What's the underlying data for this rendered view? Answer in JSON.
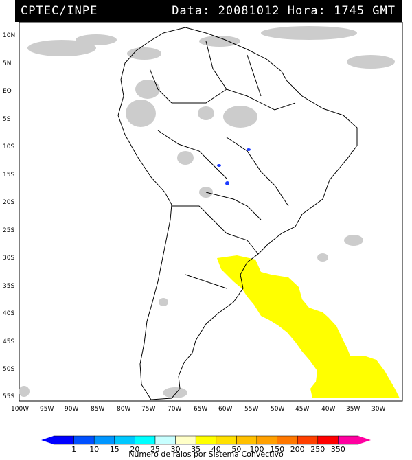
{
  "header": {
    "source": "CPTEC/INPE",
    "datetime": "Data: 20081012 Hora: 1745 GMT"
  },
  "map": {
    "lat_labels": [
      "10N",
      "5N",
      "EQ",
      "5S",
      "10S",
      "15S",
      "20S",
      "25S",
      "30S",
      "35S",
      "40S",
      "45S",
      "50S",
      "55S"
    ],
    "lon_labels": [
      "100W",
      "95W",
      "90W",
      "85W",
      "80W",
      "75W",
      "70W",
      "65W",
      "60W",
      "55W",
      "50W",
      "45W",
      "40W",
      "35W",
      "30W"
    ],
    "colors": {
      "land_outline": "#000000",
      "cloud": "#c8c8c8",
      "lightning_high": "#ffff00",
      "lightning_low": "#1e3cff"
    }
  },
  "legend": {
    "title": "Numero de raios por Sistema Convectivo",
    "labels": [
      "1",
      "10",
      "15",
      "20",
      "25",
      "30",
      "35",
      "40",
      "50",
      "100",
      "150",
      "200",
      "250",
      "350"
    ],
    "colors": [
      "#0000ff",
      "#0050ff",
      "#0096ff",
      "#00c8ff",
      "#00ffff",
      "#c8ffff",
      "#ffffc8",
      "#ffff00",
      "#ffe000",
      "#ffc000",
      "#ffa000",
      "#ff7800",
      "#ff4000",
      "#ff0000",
      "#ff00a0"
    ]
  }
}
